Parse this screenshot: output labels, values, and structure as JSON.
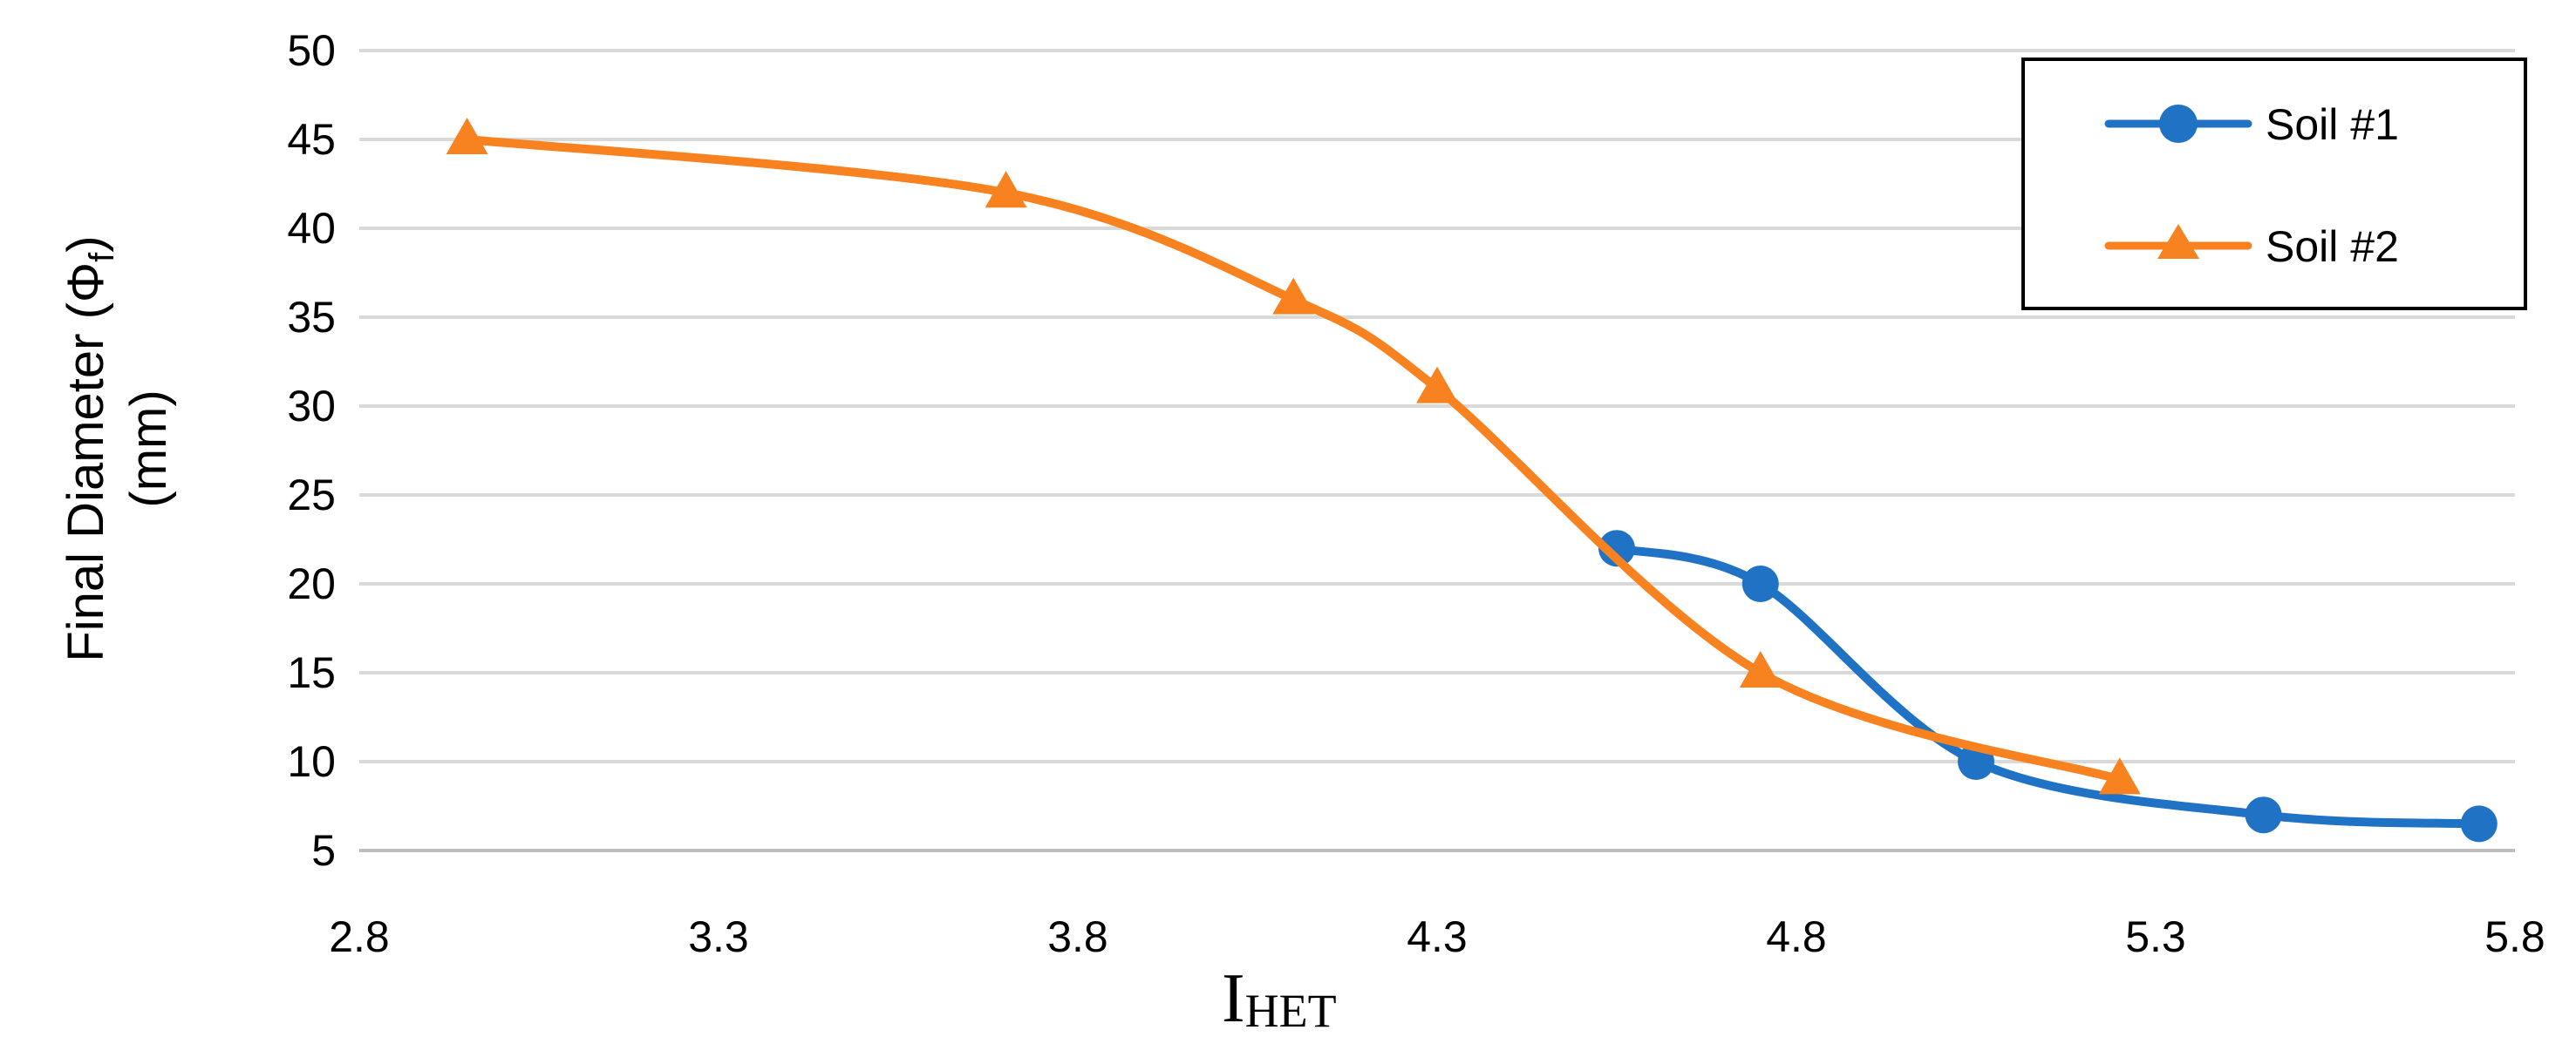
{
  "chart_data": {
    "type": "line",
    "xlabel": {
      "main": "I",
      "sub": "HET"
    },
    "ylabel": {
      "line1_prefix": "Final Diameter (Φ",
      "line1_sub": "f",
      "line1_suffix": ")",
      "line2": "(mm)"
    },
    "xlim": [
      2.8,
      5.8
    ],
    "ylim": [
      5,
      50
    ],
    "x_ticks": [
      "2.8",
      "3.3",
      "3.8",
      "4.3",
      "4.8",
      "5.3",
      "5.8"
    ],
    "y_ticks": [
      "5",
      "10",
      "15",
      "20",
      "25",
      "30",
      "35",
      "40",
      "45",
      "50"
    ],
    "grid": "horizontal",
    "legend_position": "top-right",
    "series": [
      {
        "name": "Soil #1",
        "color": "#1f72c4",
        "marker": "circle",
        "points": [
          {
            "x": 4.55,
            "y": 22
          },
          {
            "x": 4.75,
            "y": 20
          },
          {
            "x": 5.05,
            "y": 10
          },
          {
            "x": 5.45,
            "y": 7
          },
          {
            "x": 5.75,
            "y": 6.5
          }
        ]
      },
      {
        "name": "Soil #2",
        "color": "#f7821f",
        "marker": "triangle",
        "points": [
          {
            "x": 2.95,
            "y": 45
          },
          {
            "x": 3.7,
            "y": 42
          },
          {
            "x": 4.1,
            "y": 36
          },
          {
            "x": 4.3,
            "y": 31
          },
          {
            "x": 4.75,
            "y": 15
          },
          {
            "x": 5.25,
            "y": 9
          }
        ]
      }
    ]
  }
}
